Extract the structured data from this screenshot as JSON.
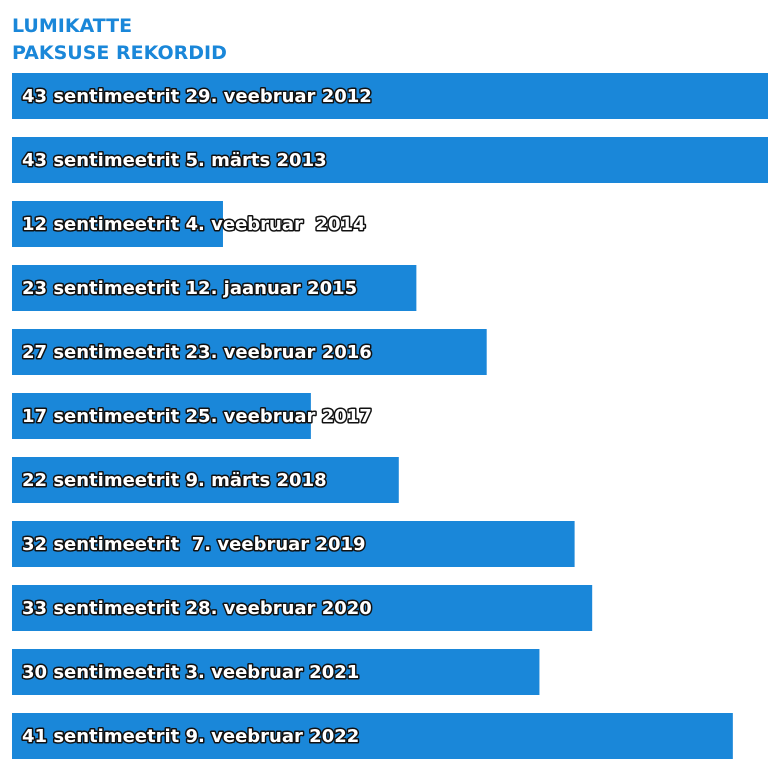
{
  "chart_data": {
    "type": "bar",
    "orientation": "horizontal",
    "title": [
      "LUMIKATTE",
      "PAKSUSE REKORDID"
    ],
    "color": "#1a87d9",
    "values": [
      43,
      43,
      12,
      23,
      27,
      17,
      22,
      32,
      33,
      30,
      41
    ],
    "value_labels": [
      "43 sentimeetrit 29. veebruar 2012",
      "43 sentimeetrit 5. märts 2013",
      "12 sentimeetrit 4. veebruar  2014",
      "23 sentimeetrit 12. jaanuar 2015",
      "27 sentimeetrit 23. veebruar 2016",
      "17 sentimeetrit 25. veebruar 2017",
      "22 sentimeetrit 9. märts 2018",
      "32 sentimeetrit  7. veebruar 2019",
      "33 sentimeetrit 28. veebruar 2020",
      "30 sentimeetrit 3. veebruar 2021",
      "41 sentimeetrit 9. veebruar 2022"
    ]
  }
}
